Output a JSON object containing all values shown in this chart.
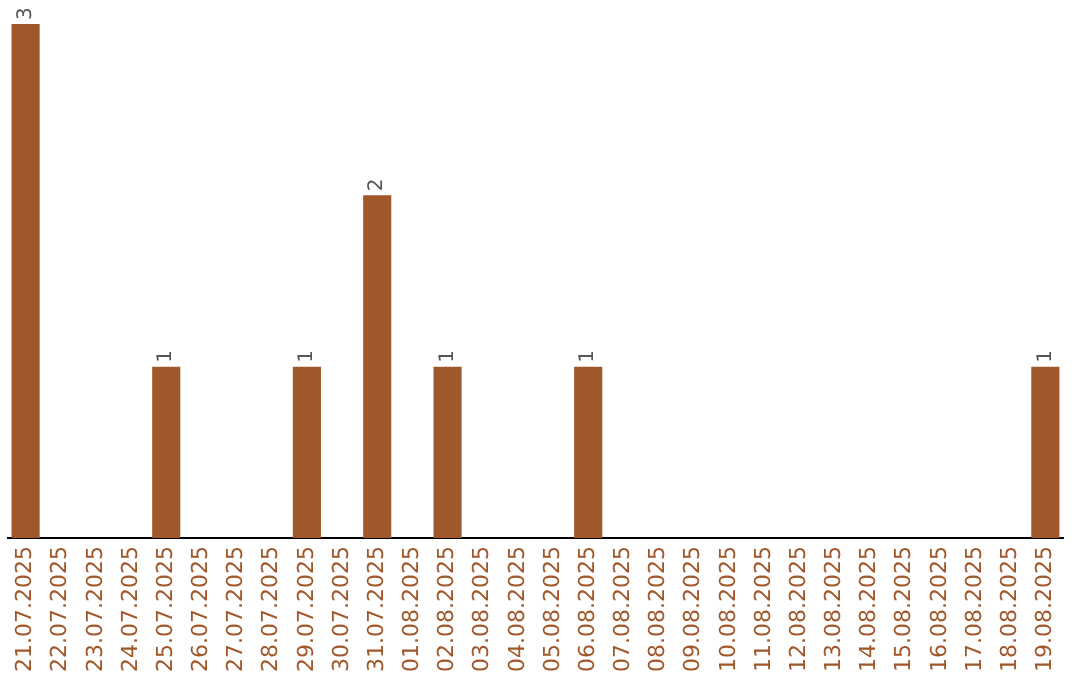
{
  "chart_data": {
    "type": "bar",
    "categories": [
      "21.07.2025",
      "22.07.2025",
      "23.07.2025",
      "24.07.2025",
      "25.07.2025",
      "26.07.2025",
      "27.07.2025",
      "28.07.2025",
      "29.07.2025",
      "30.07.2025",
      "31.07.2025",
      "01.08.2025",
      "02.08.2025",
      "03.08.2025",
      "04.08.2025",
      "05.08.2025",
      "06.08.2025",
      "07.08.2025",
      "08.08.2025",
      "09.08.2025",
      "10.08.2025",
      "11.08.2025",
      "12.08.2025",
      "13.08.2025",
      "14.08.2025",
      "15.08.2025",
      "16.08.2025",
      "17.08.2025",
      "18.08.2025",
      "19.08.2025"
    ],
    "values": [
      3,
      0,
      0,
      0,
      1,
      0,
      0,
      0,
      1,
      0,
      2,
      0,
      1,
      0,
      0,
      0,
      1,
      0,
      0,
      0,
      0,
      0,
      0,
      0,
      0,
      0,
      0,
      0,
      0,
      1
    ],
    "value_labels": [
      "3",
      null,
      null,
      null,
      "1",
      null,
      null,
      null,
      "1",
      null,
      "2",
      null,
      "1",
      null,
      null,
      null,
      "1",
      null,
      null,
      null,
      null,
      null,
      null,
      null,
      null,
      null,
      null,
      null,
      null,
      "1"
    ],
    "color": "#a0572a",
    "grid": false,
    "legend": false,
    "tick_labels": "x"
  }
}
